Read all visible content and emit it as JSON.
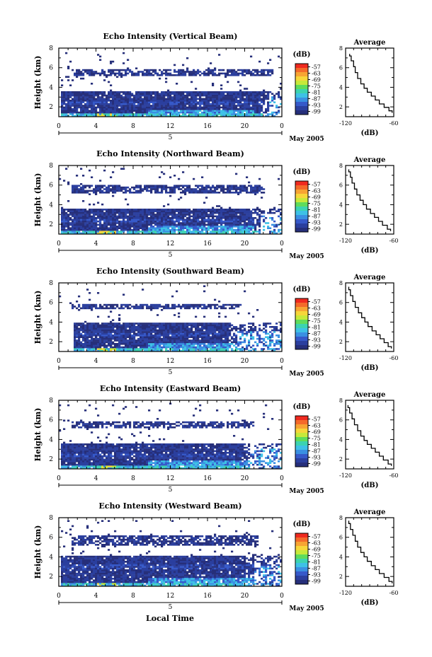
{
  "figure": {
    "xlabel": "Local Time",
    "colorbar": {
      "unit": "(dB)",
      "ticks": [
        "-57",
        "-63",
        "-69",
        "-75",
        "-81",
        "-87",
        "-93",
        "-99"
      ],
      "colors": [
        "#ef2a1f",
        "#f46a2a",
        "#f7a433",
        "#f7d63a",
        "#c7e93a",
        "#5fdc5b",
        "#3cd3b0",
        "#3ec1e6",
        "#3a90e2",
        "#3659c9",
        "#2b3f9e",
        "#262f7a"
      ]
    },
    "profile": {
      "title": "Average",
      "xlabel": "(dB)",
      "xticks": [
        "-120",
        "-60"
      ]
    }
  },
  "chart_data": [
    {
      "type": "heatmap",
      "title": "Echo Intensity (Vertical Beam)",
      "ylabel": "Height (km)",
      "x_ticks": [
        "0",
        "4",
        "8",
        "12",
        "16",
        "20",
        "0"
      ],
      "y_ticks": [
        "2",
        "4",
        "6",
        "8"
      ],
      "date_labels": [
        "5",
        "May 2005"
      ],
      "xlim": [
        0,
        24
      ],
      "ylim": [
        1,
        8
      ],
      "z_unit": "dB",
      "z_range": [
        -99,
        -57
      ],
      "low_band_top_km": 3.6,
      "upper_layer_km": [
        5.2,
        6.0
      ],
      "layer_end_hour": 22.5,
      "profile": {
        "xlim": [
          -120,
          -60
        ],
        "ylim": [
          1,
          8
        ],
        "x": [
          -115,
          -113,
          -110,
          -108,
          -105,
          -101,
          -97,
          -93,
          -88,
          -83,
          -78,
          -72,
          -66,
          -62
        ],
        "y": [
          7.4,
          7.0,
          6.4,
          5.8,
          5.2,
          4.6,
          4.1,
          3.7,
          3.3,
          2.9,
          2.5,
          2.1,
          1.8,
          1.4
        ]
      }
    },
    {
      "type": "heatmap",
      "title": "Echo Intensity (Northward Beam)",
      "ylabel": "Height (km)",
      "x_ticks": [
        "0",
        "4",
        "8",
        "12",
        "16",
        "20",
        "0"
      ],
      "y_ticks": [
        "2",
        "4",
        "6",
        "8"
      ],
      "date_labels": [
        "5",
        "May 2005"
      ],
      "xlim": [
        0,
        24
      ],
      "ylim": [
        1,
        8
      ],
      "z_unit": "dB",
      "z_range": [
        -99,
        -57
      ],
      "low_band_top_km": 3.6,
      "upper_layer_km": [
        5.3,
        6.1
      ],
      "layer_end_hour": 21.5,
      "profile": {
        "xlim": [
          -120,
          -60
        ],
        "ylim": [
          1,
          8
        ],
        "x": [
          -116,
          -114,
          -112,
          -109,
          -106,
          -102,
          -98,
          -94,
          -89,
          -84,
          -79,
          -74,
          -68,
          -64
        ],
        "y": [
          7.6,
          7.1,
          6.5,
          5.9,
          5.3,
          4.7,
          4.2,
          3.8,
          3.3,
          2.9,
          2.5,
          2.1,
          1.7,
          1.3
        ]
      }
    },
    {
      "type": "heatmap",
      "title": "Echo Intensity (Southward Beam)",
      "ylabel": "Height (km)",
      "x_ticks": [
        "0",
        "4",
        "8",
        "12",
        "16",
        "20",
        "0"
      ],
      "y_ticks": [
        "2",
        "4",
        "6",
        "8"
      ],
      "date_labels": [
        "5",
        "May 2005"
      ],
      "xlim": [
        0,
        24
      ],
      "ylim": [
        1,
        8
      ],
      "z_unit": "dB",
      "z_range": [
        -99,
        -57
      ],
      "low_band_top_km": 4.0,
      "upper_layer_km": [
        5.4,
        6.0
      ],
      "layer_end_hour": 19.0,
      "profile": {
        "xlim": [
          -120,
          -60
        ],
        "ylim": [
          1,
          8
        ],
        "x": [
          -116,
          -114,
          -111,
          -108,
          -104,
          -100,
          -96,
          -92,
          -87,
          -82,
          -77,
          -72,
          -67,
          -63
        ],
        "y": [
          7.6,
          7.0,
          6.4,
          5.8,
          5.2,
          4.7,
          4.2,
          3.8,
          3.3,
          2.9,
          2.5,
          2.1,
          1.7,
          1.3
        ]
      }
    },
    {
      "type": "heatmap",
      "title": "Echo Intensity (Eastward Beam)",
      "ylabel": "Height (km)",
      "x_ticks": [
        "0",
        "4",
        "8",
        "12",
        "16",
        "20",
        "0"
      ],
      "y_ticks": [
        "2",
        "4",
        "6",
        "8"
      ],
      "date_labels": [
        "5",
        "May 2005"
      ],
      "xlim": [
        0,
        24
      ],
      "ylim": [
        1,
        8
      ],
      "z_unit": "dB",
      "z_range": [
        -99,
        -57
      ],
      "low_band_top_km": 3.6,
      "upper_layer_km": [
        5.3,
        6.0
      ],
      "layer_end_hour": 20.5,
      "profile": {
        "xlim": [
          -120,
          -60
        ],
        "ylim": [
          1,
          8
        ],
        "x": [
          -117,
          -115,
          -112,
          -109,
          -105,
          -101,
          -97,
          -93,
          -88,
          -83,
          -78,
          -73,
          -67,
          -63
        ],
        "y": [
          7.5,
          7.0,
          6.4,
          5.8,
          5.2,
          4.6,
          4.1,
          3.7,
          3.3,
          2.9,
          2.5,
          2.1,
          1.7,
          1.3
        ]
      }
    },
    {
      "type": "heatmap",
      "title": "Echo Intensity (Westward Beam)",
      "ylabel": "Height (km)",
      "x_ticks": [
        "0",
        "4",
        "8",
        "12",
        "16",
        "20",
        "0"
      ],
      "y_ticks": [
        "2",
        "4",
        "6",
        "8"
      ],
      "date_labels": [
        "5",
        "May 2005"
      ],
      "xlim": [
        0,
        24
      ],
      "ylim": [
        1,
        8
      ],
      "z_unit": "dB",
      "z_range": [
        -99,
        -57
      ],
      "low_band_top_km": 4.2,
      "upper_layer_km": [
        5.2,
        6.2
      ],
      "layer_end_hour": 21.0,
      "profile": {
        "xlim": [
          -120,
          -60
        ],
        "ylim": [
          1,
          8
        ],
        "x": [
          -116,
          -114,
          -111,
          -108,
          -105,
          -101,
          -97,
          -93,
          -88,
          -83,
          -78,
          -72,
          -66,
          -62
        ],
        "y": [
          7.7,
          7.1,
          6.5,
          5.9,
          5.3,
          4.7,
          4.2,
          3.8,
          3.3,
          2.9,
          2.5,
          2.1,
          1.7,
          1.3
        ]
      }
    }
  ]
}
